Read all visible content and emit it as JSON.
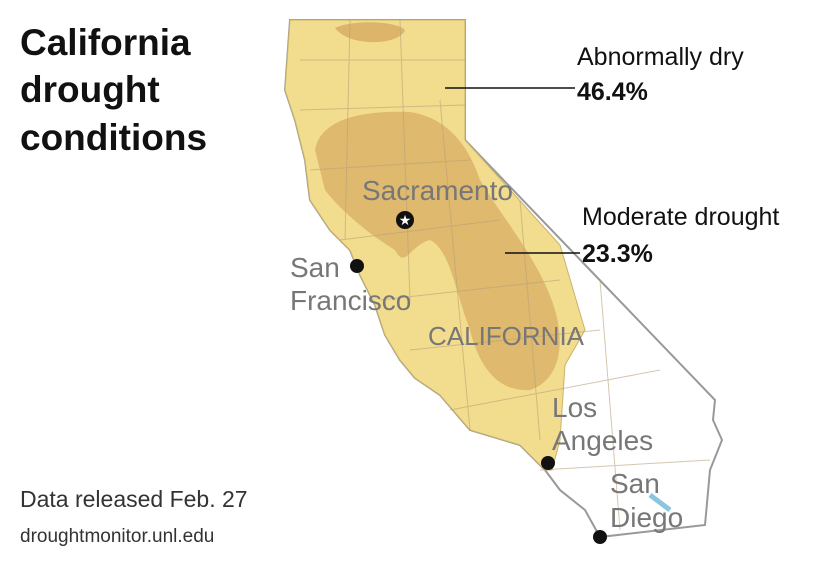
{
  "header": {
    "title_lines": [
      "California",
      "drought",
      "conditions"
    ]
  },
  "legend": [
    {
      "name": "Abnormally dry",
      "value": "46.4%"
    },
    {
      "name": "Moderate drought",
      "value": "23.3%"
    }
  ],
  "map": {
    "state_label": "CALIFORNIA",
    "cities": [
      {
        "lines": [
          "Sacramento"
        ]
      },
      {
        "lines": [
          "San",
          "Francisco"
        ]
      },
      {
        "lines": [
          "Los",
          "Angeles"
        ]
      },
      {
        "lines": [
          "San",
          "Diego"
        ]
      }
    ]
  },
  "footer": {
    "release": "Data released Feb. 27",
    "source": "droughtmonitor.unl.edu"
  }
}
